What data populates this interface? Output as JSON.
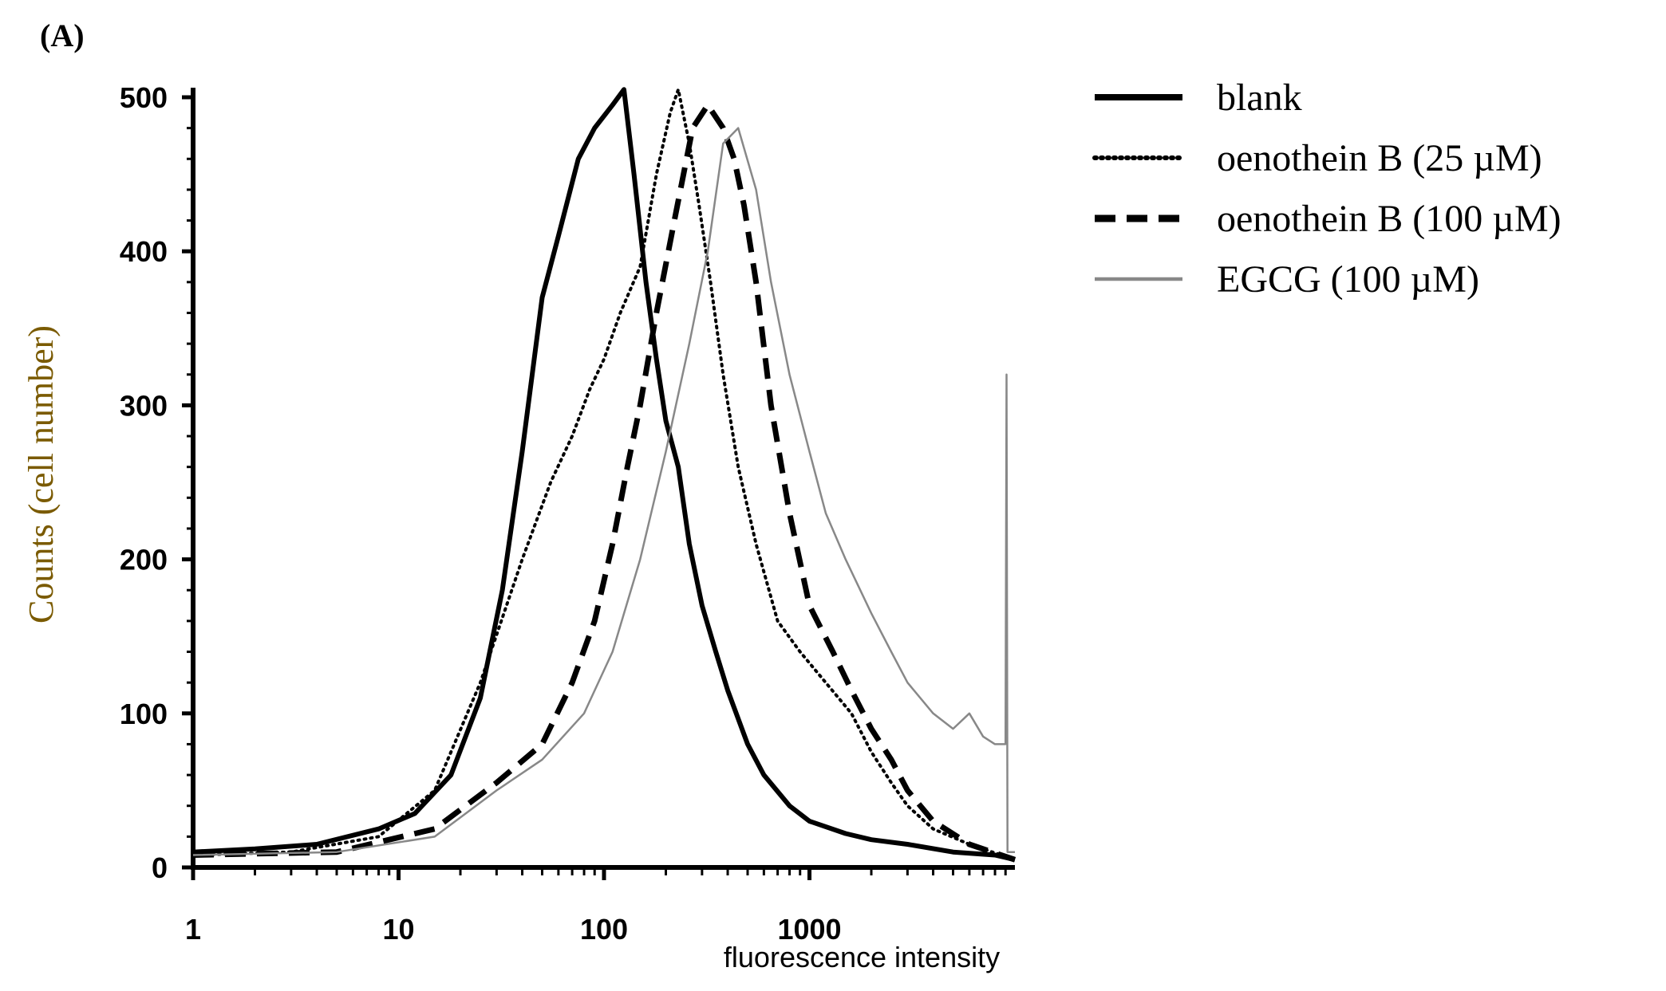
{
  "panel_label": "(A)",
  "chart_data": {
    "type": "line",
    "title": "",
    "xlabel": "fluorescence intensity",
    "ylabel": "Counts (cell number)",
    "x_scale": "log",
    "xlim": [
      1,
      10000
    ],
    "ylim": [
      0,
      500
    ],
    "x_ticks": [
      1,
      10,
      100,
      1000
    ],
    "x_tick_labels": [
      "1",
      "10",
      "100",
      "1000"
    ],
    "y_ticks": [
      0,
      100,
      200,
      300,
      400,
      500
    ],
    "y_tick_labels": [
      "0",
      "100",
      "200",
      "300",
      "400",
      "500"
    ],
    "grid": false,
    "legend_position": "top-right",
    "series": [
      {
        "name": "blank",
        "style": "solid-thick",
        "color": "#000000",
        "x": [
          1,
          2,
          4,
          8,
          12,
          18,
          25,
          32,
          40,
          50,
          60,
          75,
          90,
          110,
          125,
          140,
          160,
          180,
          200,
          230,
          260,
          300,
          350,
          400,
          500,
          600,
          800,
          1000,
          1500,
          2000,
          3000,
          5000,
          8000,
          10000
        ],
        "y": [
          10,
          12,
          15,
          25,
          35,
          60,
          110,
          180,
          270,
          370,
          410,
          460,
          480,
          495,
          505,
          450,
          380,
          330,
          290,
          260,
          210,
          170,
          140,
          115,
          80,
          60,
          40,
          30,
          22,
          18,
          15,
          10,
          8,
          5
        ]
      },
      {
        "name": "oenothein B (25 µM)",
        "style": "dotted",
        "color": "#000000",
        "x": [
          1,
          3,
          8,
          15,
          25,
          40,
          55,
          70,
          85,
          100,
          120,
          150,
          180,
          210,
          230,
          260,
          290,
          330,
          380,
          450,
          550,
          700,
          900,
          1200,
          1600,
          2000,
          2500,
          3000,
          4000,
          6000,
          10000
        ],
        "y": [
          8,
          10,
          20,
          50,
          120,
          200,
          250,
          280,
          310,
          330,
          360,
          390,
          450,
          490,
          505,
          470,
          430,
          380,
          320,
          260,
          210,
          160,
          140,
          120,
          100,
          75,
          55,
          40,
          25,
          15,
          5
        ]
      },
      {
        "name": "oenothein B (100 µM)",
        "style": "dashed",
        "color": "#000000",
        "x": [
          1,
          5,
          15,
          30,
          50,
          70,
          90,
          110,
          130,
          150,
          180,
          220,
          270,
          320,
          380,
          430,
          480,
          550,
          650,
          800,
          1000,
          1300,
          1600,
          2000,
          2500,
          3000,
          4000,
          6000,
          10000
        ],
        "y": [
          8,
          10,
          25,
          55,
          80,
          120,
          160,
          210,
          260,
          300,
          360,
          420,
          480,
          495,
          480,
          460,
          430,
          380,
          300,
          230,
          170,
          140,
          115,
          90,
          70,
          50,
          30,
          15,
          5
        ]
      },
      {
        "name": "EGCG (100 µM)",
        "style": "solid-thin",
        "color": "#888888",
        "x": [
          1,
          5,
          15,
          30,
          50,
          80,
          110,
          150,
          200,
          260,
          320,
          380,
          450,
          550,
          650,
          800,
          1000,
          1200,
          1500,
          2000,
          2500,
          3000,
          4000,
          5000,
          6000,
          7000,
          8000,
          9000,
          9100,
          9200,
          10000
        ],
        "y": [
          8,
          10,
          20,
          50,
          70,
          100,
          140,
          200,
          270,
          340,
          400,
          470,
          480,
          440,
          380,
          320,
          270,
          230,
          200,
          165,
          140,
          120,
          100,
          90,
          100,
          85,
          80,
          80,
          320,
          10,
          10
        ]
      }
    ]
  }
}
